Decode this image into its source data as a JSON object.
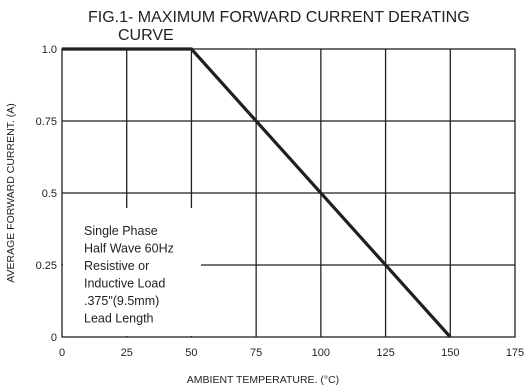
{
  "chart_data": {
    "type": "line",
    "title_line1": "FIG.1- MAXIMUM FORWARD CURRENT DERATING",
    "title_line2": "CURVE",
    "xlabel": "AMBIENT TEMPERATURE. (°C)",
    "ylabel": "AVERAGE FORWARD CURRENT. (A)",
    "xlim": [
      0,
      175
    ],
    "ylim": [
      0,
      1.0
    ],
    "x_ticks": [
      0,
      25,
      50,
      75,
      100,
      125,
      150,
      175
    ],
    "x_tick_labels": [
      "0",
      "25",
      "50",
      "75",
      "100",
      "125",
      "150",
      "175"
    ],
    "y_ticks": [
      0,
      0.25,
      0.5,
      0.75,
      1.0
    ],
    "y_tick_labels": [
      "0",
      "0.25",
      "0.5",
      "0.75",
      "1.0"
    ],
    "grid": true,
    "series": [
      {
        "x": [
          0,
          50,
          150
        ],
        "y": [
          1.0,
          1.0,
          0
        ]
      }
    ],
    "annotation": [
      "Single Phase",
      "Half Wave 60Hz",
      "Resistive or",
      "Inductive Load",
      ".375\"(9.5mm)",
      "Lead Length"
    ],
    "colors": {
      "line": "#231f20",
      "grid": "#231f20",
      "background": "#ffffff"
    }
  }
}
